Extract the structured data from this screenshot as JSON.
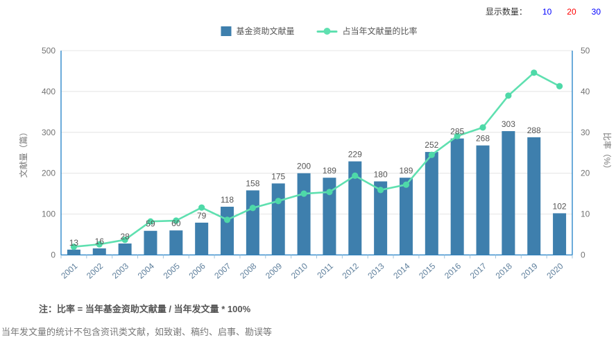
{
  "controls": {
    "label": "显示数量：",
    "options": [
      {
        "label": "10",
        "color": "#0000ff",
        "selected": false
      },
      {
        "label": "20",
        "color": "#ff0000",
        "selected": true
      },
      {
        "label": "30",
        "color": "#0000ff",
        "selected": false
      }
    ]
  },
  "legend": {
    "items": [
      {
        "label": "基金资助文献量",
        "type": "bar",
        "color": "#3e7fad"
      },
      {
        "label": "占当年文献量的比率",
        "type": "line",
        "color": "#5fe0b0"
      }
    ]
  },
  "chart_data": {
    "type": "bar+line",
    "categories": [
      "2001",
      "2002",
      "2003",
      "2004",
      "2005",
      "2006",
      "2007",
      "2008",
      "2009",
      "2010",
      "2011",
      "2012",
      "2013",
      "2014",
      "2015",
      "2016",
      "2017",
      "2018",
      "2019",
      "2020"
    ],
    "series": [
      {
        "name": "基金资助文献量",
        "type": "bar",
        "axis": "left",
        "color": "#3e7fad",
        "values": [
          13,
          16,
          28,
          59,
          60,
          79,
          118,
          158,
          175,
          200,
          189,
          229,
          180,
          189,
          252,
          285,
          268,
          303,
          288,
          102
        ]
      },
      {
        "name": "占当年文献量的比率",
        "type": "line",
        "axis": "right",
        "color": "#5fe0b0",
        "values": [
          2.0,
          2.6,
          3.7,
          8.2,
          8.4,
          11.6,
          8.6,
          11.5,
          13.2,
          15.0,
          15.4,
          19.4,
          15.9,
          17.2,
          24.5,
          29.1,
          31.2,
          39.0,
          44.6,
          41.3
        ]
      }
    ],
    "y_left": {
      "label": "文献量（篇）",
      "min": 0,
      "max": 500,
      "step": 100
    },
    "y_right": {
      "label": "比率（%）",
      "min": 0,
      "max": 50,
      "step": 10
    },
    "grid": true,
    "legend_position": "top-center",
    "x_label_rotation": -42
  },
  "notes": {
    "formula": "注：比率 = 当年基金资助文献量 / 当年发文量 * 100%",
    "exclusion": "当年发文量的统计不包含资讯类文献，如致谢、稿约、启事、勘误等"
  },
  "colors": {
    "bar": "#3e7fad",
    "line": "#5fe0b0",
    "marker": "#4ed9a8",
    "axis": "#1c7ec5",
    "axis_tick": "#9fc4dd",
    "grid": "#e4e4e4",
    "value_label": "#555555",
    "axis_label": "#737373",
    "x_label": "#5e7f9c",
    "y_title": "#777777"
  }
}
